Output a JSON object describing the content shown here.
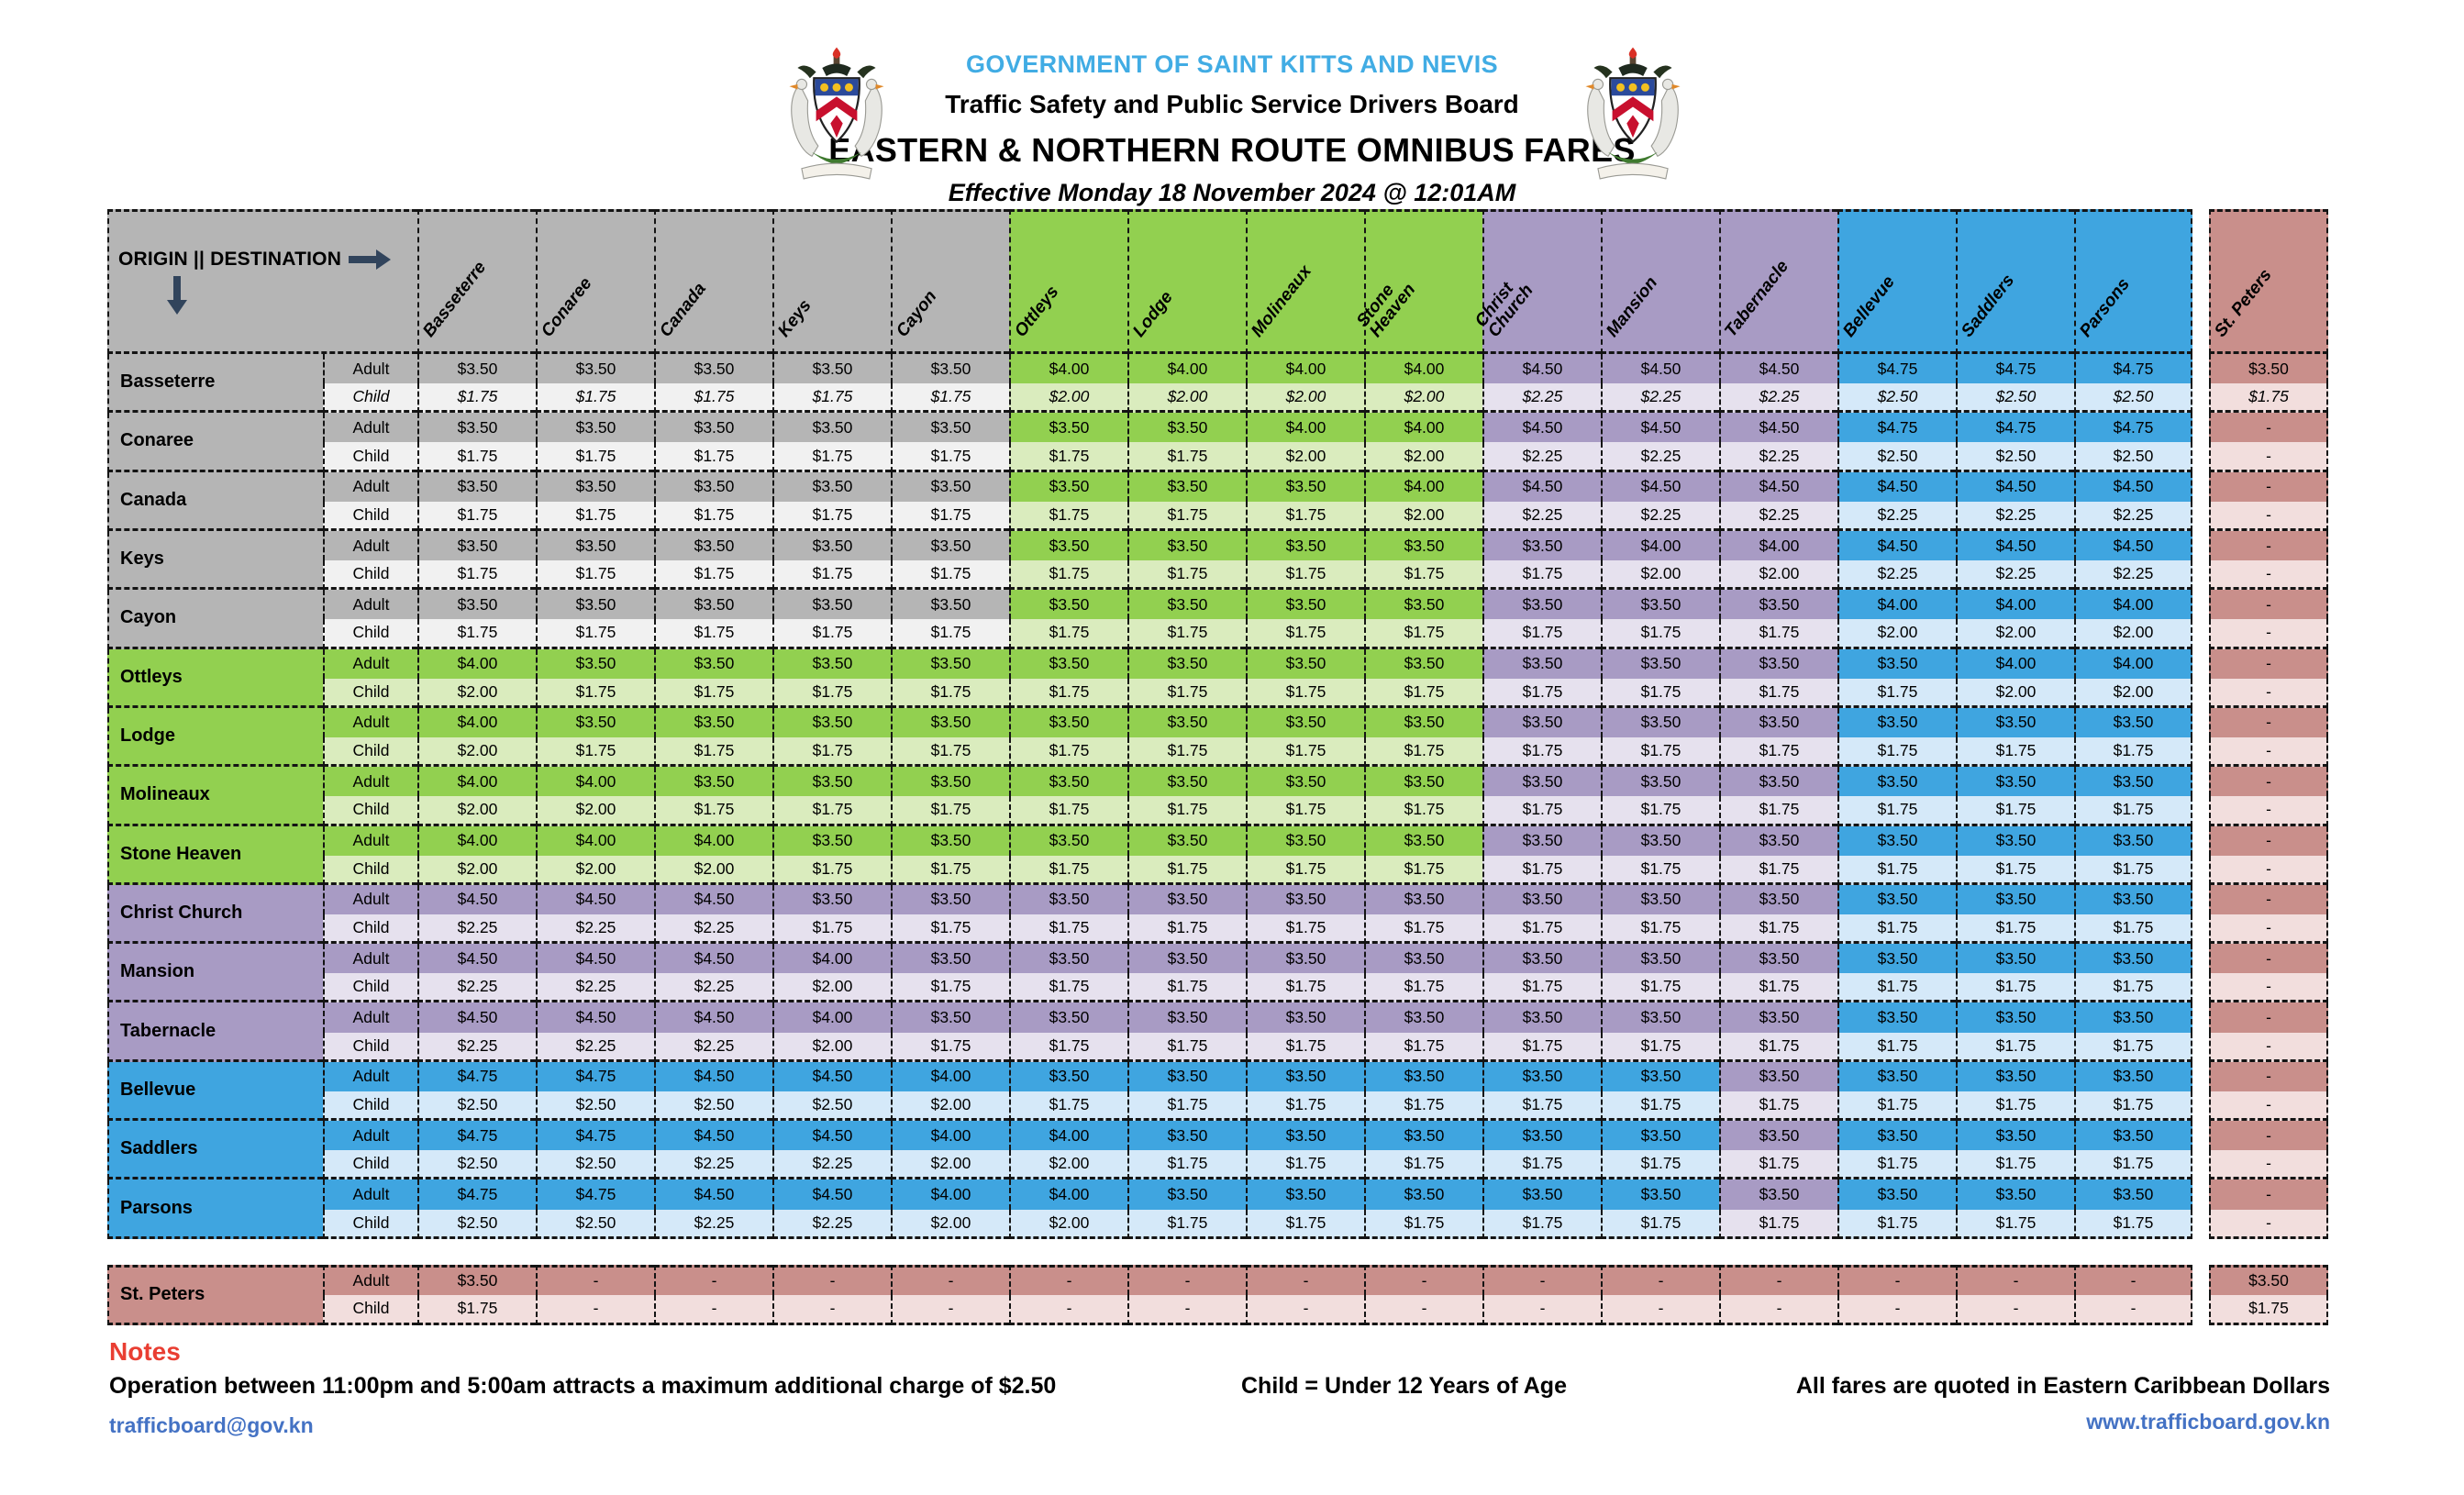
{
  "header": {
    "government_line": "GOVERNMENT OF SAINT KITTS AND NEVIS",
    "board_line": "Traffic Safety and Public Service Drivers Board",
    "title": "EASTERN & NORTHERN ROUTE OMNIBUS FARES",
    "effective_line": "Effective Monday 18 November 2024 @ 12:01AM"
  },
  "table": {
    "corner_label": "ORIGIN || DESTINATION",
    "fare_type_labels": [
      "Adult",
      "Child"
    ],
    "destinations": [
      "Basseterre",
      "Conaree",
      "Canada",
      "Keys",
      "Cayon",
      "Ottleys",
      "Lodge",
      "Molineaux",
      "Stone Heaven",
      "Christ Church",
      "Mansion",
      "Tabernacle",
      "Bellevue",
      "Saddlers",
      "Parsons",
      "St. Peters"
    ],
    "column_groups": [
      "gray",
      "gray",
      "gray",
      "gray",
      "gray",
      "green",
      "green",
      "green",
      "green",
      "purple",
      "purple",
      "purple",
      "blue",
      "blue",
      "blue",
      "rose"
    ],
    "zone_colors": {
      "gray": {
        "adult": "#B5B5B5",
        "child": "#F1F1F1"
      },
      "green": {
        "adult": "#92D050",
        "child": "#DAECBE"
      },
      "purple": {
        "adult": "#A89BC4",
        "child": "#E6E1EE"
      },
      "blue": {
        "adult": "#3FA5E0",
        "child": "#D5E9F9"
      },
      "rose": {
        "adult": "#C98F8B",
        "child": "#F2DEDD"
      }
    },
    "no_service": "-",
    "rows": [
      {
        "origin": "Basseterre",
        "group": "gray",
        "child_italic": true,
        "adult": [
          "$3.50",
          "$3.50",
          "$3.50",
          "$3.50",
          "$3.50",
          "$4.00",
          "$4.00",
          "$4.00",
          "$4.00",
          "$4.50",
          "$4.50",
          "$4.50",
          "$4.75",
          "$4.75",
          "$4.75",
          "$3.50"
        ],
        "child": [
          "$1.75",
          "$1.75",
          "$1.75",
          "$1.75",
          "$1.75",
          "$2.00",
          "$2.00",
          "$2.00",
          "$2.00",
          "$2.25",
          "$2.25",
          "$2.25",
          "$2.50",
          "$2.50",
          "$2.50",
          "$1.75"
        ]
      },
      {
        "origin": "Conaree",
        "group": "gray",
        "child_italic": false,
        "adult": [
          "$3.50",
          "$3.50",
          "$3.50",
          "$3.50",
          "$3.50",
          "$3.50",
          "$3.50",
          "$4.00",
          "$4.00",
          "$4.50",
          "$4.50",
          "$4.50",
          "$4.75",
          "$4.75",
          "$4.75",
          "-"
        ],
        "child": [
          "$1.75",
          "$1.75",
          "$1.75",
          "$1.75",
          "$1.75",
          "$1.75",
          "$1.75",
          "$2.00",
          "$2.00",
          "$2.25",
          "$2.25",
          "$2.25",
          "$2.50",
          "$2.50",
          "$2.50",
          "-"
        ]
      },
      {
        "origin": "Canada",
        "group": "gray",
        "child_italic": false,
        "adult": [
          "$3.50",
          "$3.50",
          "$3.50",
          "$3.50",
          "$3.50",
          "$3.50",
          "$3.50",
          "$3.50",
          "$4.00",
          "$4.50",
          "$4.50",
          "$4.50",
          "$4.50",
          "$4.50",
          "$4.50",
          "-"
        ],
        "child": [
          "$1.75",
          "$1.75",
          "$1.75",
          "$1.75",
          "$1.75",
          "$1.75",
          "$1.75",
          "$1.75",
          "$2.00",
          "$2.25",
          "$2.25",
          "$2.25",
          "$2.25",
          "$2.25",
          "$2.25",
          "-"
        ]
      },
      {
        "origin": "Keys",
        "group": "gray",
        "child_italic": false,
        "adult": [
          "$3.50",
          "$3.50",
          "$3.50",
          "$3.50",
          "$3.50",
          "$3.50",
          "$3.50",
          "$3.50",
          "$3.50",
          "$3.50",
          "$4.00",
          "$4.00",
          "$4.50",
          "$4.50",
          "$4.50",
          "-"
        ],
        "child": [
          "$1.75",
          "$1.75",
          "$1.75",
          "$1.75",
          "$1.75",
          "$1.75",
          "$1.75",
          "$1.75",
          "$1.75",
          "$1.75",
          "$2.00",
          "$2.00",
          "$2.25",
          "$2.25",
          "$2.25",
          "-"
        ]
      },
      {
        "origin": "Cayon",
        "group": "gray",
        "child_italic": false,
        "adult": [
          "$3.50",
          "$3.50",
          "$3.50",
          "$3.50",
          "$3.50",
          "$3.50",
          "$3.50",
          "$3.50",
          "$3.50",
          "$3.50",
          "$3.50",
          "$3.50",
          "$4.00",
          "$4.00",
          "$4.00",
          "-"
        ],
        "child": [
          "$1.75",
          "$1.75",
          "$1.75",
          "$1.75",
          "$1.75",
          "$1.75",
          "$1.75",
          "$1.75",
          "$1.75",
          "$1.75",
          "$1.75",
          "$1.75",
          "$2.00",
          "$2.00",
          "$2.00",
          "-"
        ]
      },
      {
        "origin": "Ottleys",
        "group": "green",
        "child_italic": false,
        "adult": [
          "$4.00",
          "$3.50",
          "$3.50",
          "$3.50",
          "$3.50",
          "$3.50",
          "$3.50",
          "$3.50",
          "$3.50",
          "$3.50",
          "$3.50",
          "$3.50",
          "$3.50",
          "$4.00",
          "$4.00",
          "-"
        ],
        "child": [
          "$2.00",
          "$1.75",
          "$1.75",
          "$1.75",
          "$1.75",
          "$1.75",
          "$1.75",
          "$1.75",
          "$1.75",
          "$1.75",
          "$1.75",
          "$1.75",
          "$1.75",
          "$2.00",
          "$2.00",
          "-"
        ]
      },
      {
        "origin": "Lodge",
        "group": "green",
        "child_italic": false,
        "adult": [
          "$4.00",
          "$3.50",
          "$3.50",
          "$3.50",
          "$3.50",
          "$3.50",
          "$3.50",
          "$3.50",
          "$3.50",
          "$3.50",
          "$3.50",
          "$3.50",
          "$3.50",
          "$3.50",
          "$3.50",
          "-"
        ],
        "child": [
          "$2.00",
          "$1.75",
          "$1.75",
          "$1.75",
          "$1.75",
          "$1.75",
          "$1.75",
          "$1.75",
          "$1.75",
          "$1.75",
          "$1.75",
          "$1.75",
          "$1.75",
          "$1.75",
          "$1.75",
          "-"
        ]
      },
      {
        "origin": "Molineaux",
        "group": "green",
        "child_italic": false,
        "adult": [
          "$4.00",
          "$4.00",
          "$3.50",
          "$3.50",
          "$3.50",
          "$3.50",
          "$3.50",
          "$3.50",
          "$3.50",
          "$3.50",
          "$3.50",
          "$3.50",
          "$3.50",
          "$3.50",
          "$3.50",
          "-"
        ],
        "child": [
          "$2.00",
          "$2.00",
          "$1.75",
          "$1.75",
          "$1.75",
          "$1.75",
          "$1.75",
          "$1.75",
          "$1.75",
          "$1.75",
          "$1.75",
          "$1.75",
          "$1.75",
          "$1.75",
          "$1.75",
          "-"
        ]
      },
      {
        "origin": "Stone Heaven",
        "group": "green",
        "child_italic": false,
        "adult": [
          "$4.00",
          "$4.00",
          "$4.00",
          "$3.50",
          "$3.50",
          "$3.50",
          "$3.50",
          "$3.50",
          "$3.50",
          "$3.50",
          "$3.50",
          "$3.50",
          "$3.50",
          "$3.50",
          "$3.50",
          "-"
        ],
        "child": [
          "$2.00",
          "$2.00",
          "$2.00",
          "$1.75",
          "$1.75",
          "$1.75",
          "$1.75",
          "$1.75",
          "$1.75",
          "$1.75",
          "$1.75",
          "$1.75",
          "$1.75",
          "$1.75",
          "$1.75",
          "-"
        ]
      },
      {
        "origin": "Christ Church",
        "group": "purple",
        "child_italic": false,
        "adult": [
          "$4.50",
          "$4.50",
          "$4.50",
          "$3.50",
          "$3.50",
          "$3.50",
          "$3.50",
          "$3.50",
          "$3.50",
          "$3.50",
          "$3.50",
          "$3.50",
          "$3.50",
          "$3.50",
          "$3.50",
          "-"
        ],
        "child": [
          "$2.25",
          "$2.25",
          "$2.25",
          "$1.75",
          "$1.75",
          "$1.75",
          "$1.75",
          "$1.75",
          "$1.75",
          "$1.75",
          "$1.75",
          "$1.75",
          "$1.75",
          "$1.75",
          "$1.75",
          "-"
        ]
      },
      {
        "origin": "Mansion",
        "group": "purple",
        "child_italic": false,
        "adult": [
          "$4.50",
          "$4.50",
          "$4.50",
          "$4.00",
          "$3.50",
          "$3.50",
          "$3.50",
          "$3.50",
          "$3.50",
          "$3.50",
          "$3.50",
          "$3.50",
          "$3.50",
          "$3.50",
          "$3.50",
          "-"
        ],
        "child": [
          "$2.25",
          "$2.25",
          "$2.25",
          "$2.00",
          "$1.75",
          "$1.75",
          "$1.75",
          "$1.75",
          "$1.75",
          "$1.75",
          "$1.75",
          "$1.75",
          "$1.75",
          "$1.75",
          "$1.75",
          "-"
        ]
      },
      {
        "origin": "Tabernacle",
        "group": "purple",
        "child_italic": false,
        "adult": [
          "$4.50",
          "$4.50",
          "$4.50",
          "$4.00",
          "$3.50",
          "$3.50",
          "$3.50",
          "$3.50",
          "$3.50",
          "$3.50",
          "$3.50",
          "$3.50",
          "$3.50",
          "$3.50",
          "$3.50",
          "-"
        ],
        "child": [
          "$2.25",
          "$2.25",
          "$2.25",
          "$2.00",
          "$1.75",
          "$1.75",
          "$1.75",
          "$1.75",
          "$1.75",
          "$1.75",
          "$1.75",
          "$1.75",
          "$1.75",
          "$1.75",
          "$1.75",
          "-"
        ]
      },
      {
        "origin": "Bellevue",
        "group": "blue",
        "child_italic": false,
        "adult": [
          "$4.75",
          "$4.75",
          "$4.50",
          "$4.50",
          "$4.00",
          "$3.50",
          "$3.50",
          "$3.50",
          "$3.50",
          "$3.50",
          "$3.50",
          "$3.50",
          "$3.50",
          "$3.50",
          "$3.50",
          "-"
        ],
        "child": [
          "$2.50",
          "$2.50",
          "$2.50",
          "$2.50",
          "$2.00",
          "$1.75",
          "$1.75",
          "$1.75",
          "$1.75",
          "$1.75",
          "$1.75",
          "$1.75",
          "$1.75",
          "$1.75",
          "$1.75",
          "-"
        ]
      },
      {
        "origin": "Saddlers",
        "group": "blue",
        "child_italic": false,
        "adult": [
          "$4.75",
          "$4.75",
          "$4.50",
          "$4.50",
          "$4.00",
          "$4.00",
          "$3.50",
          "$3.50",
          "$3.50",
          "$3.50",
          "$3.50",
          "$3.50",
          "$3.50",
          "$3.50",
          "$3.50",
          "-"
        ],
        "child": [
          "$2.50",
          "$2.50",
          "$2.25",
          "$2.25",
          "$2.00",
          "$2.00",
          "$1.75",
          "$1.75",
          "$1.75",
          "$1.75",
          "$1.75",
          "$1.75",
          "$1.75",
          "$1.75",
          "$1.75",
          "-"
        ]
      },
      {
        "origin": "Parsons",
        "group": "blue",
        "child_italic": false,
        "adult": [
          "$4.75",
          "$4.75",
          "$4.50",
          "$4.50",
          "$4.00",
          "$4.00",
          "$3.50",
          "$3.50",
          "$3.50",
          "$3.50",
          "$3.50",
          "$3.50",
          "$3.50",
          "$3.50",
          "$3.50",
          "-"
        ],
        "child": [
          "$2.50",
          "$2.50",
          "$2.25",
          "$2.25",
          "$2.00",
          "$2.00",
          "$1.75",
          "$1.75",
          "$1.75",
          "$1.75",
          "$1.75",
          "$1.75",
          "$1.75",
          "$1.75",
          "$1.75",
          "-"
        ]
      },
      {
        "origin": "St. Peters",
        "group": "rose",
        "child_italic": false,
        "separated": true,
        "adult": [
          "$3.50",
          "-",
          "-",
          "-",
          "-",
          "-",
          "-",
          "-",
          "-",
          "-",
          "-",
          "-",
          "-",
          "-",
          "-",
          "$3.50"
        ],
        "child": [
          "$1.75",
          "-",
          "-",
          "-",
          "-",
          "-",
          "-",
          "-",
          "-",
          "-",
          "-",
          "-",
          "-",
          "-",
          "-",
          "$1.75"
        ]
      }
    ]
  },
  "notes": {
    "heading": "Notes",
    "note_surcharge": "Operation between 11:00pm and 5:00am attracts a maximum additional charge of $2.50",
    "note_child": "Child = Under 12 Years of Age",
    "note_currency": "All fares are quoted in Eastern Caribbean Dollars",
    "email": "trafficboard@gov.kn",
    "website": "www.trafficboard.gov.kn"
  },
  "accent_colors": {
    "title_blue": "#41ACE4",
    "link_blue": "#4472C4",
    "notes_red": "#E93E32",
    "arrow_navy": "#31445C"
  }
}
